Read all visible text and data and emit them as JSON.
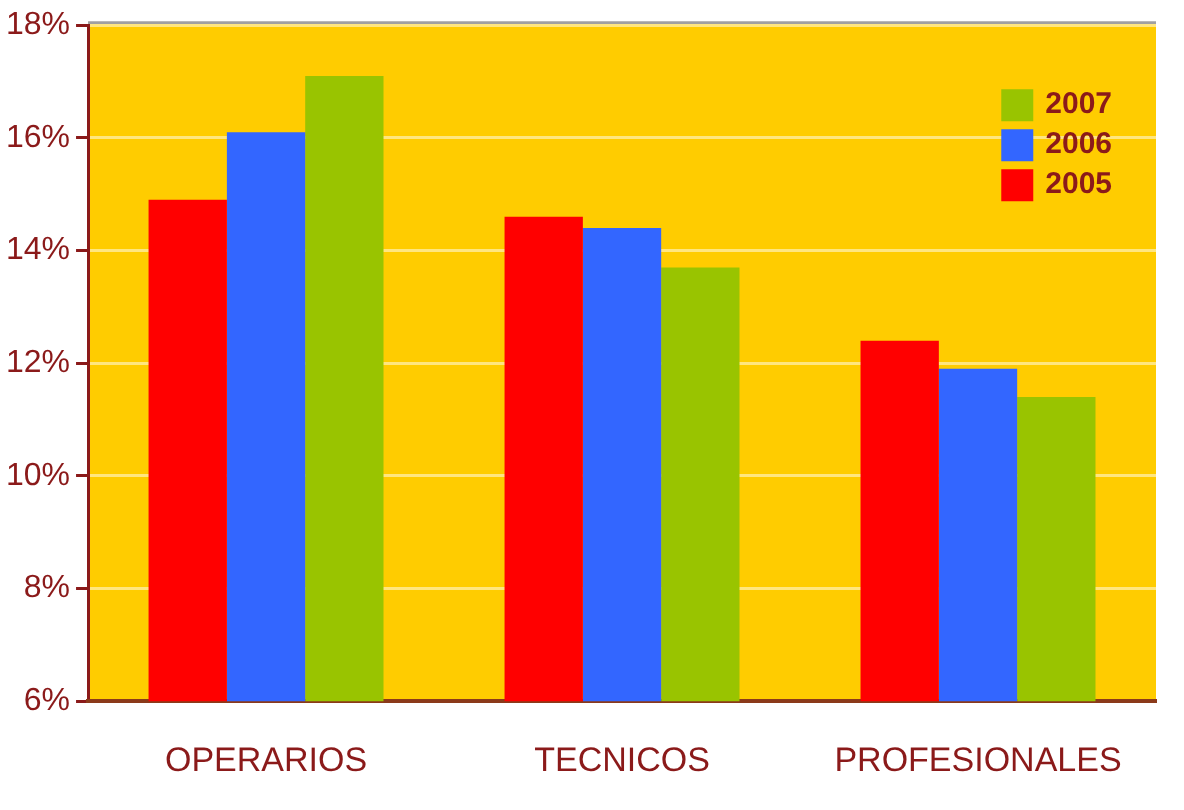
{
  "chart_data": {
    "type": "bar",
    "categories": [
      "OPERARIOS",
      "TECNICOS",
      "PROFESIONALES"
    ],
    "series": [
      {
        "name": "2005",
        "color": "#ff0000",
        "values": [
          14.9,
          14.6,
          12.4
        ]
      },
      {
        "name": "2006",
        "color": "#3366ff",
        "values": [
          16.1,
          14.4,
          11.9
        ]
      },
      {
        "name": "2007",
        "color": "#99c400",
        "values": [
          17.1,
          13.7,
          11.4
        ]
      }
    ],
    "ylim": [
      6,
      18
    ],
    "yticks": [
      {
        "value": 6,
        "label": "6%"
      },
      {
        "value": 8,
        "label": "8%"
      },
      {
        "value": 10,
        "label": "10%"
      },
      {
        "value": 12,
        "label": "12%"
      },
      {
        "value": 14,
        "label": "14%"
      },
      {
        "value": 16,
        "label": "16%"
      },
      {
        "value": 18,
        "label": "18%"
      }
    ],
    "grid": "y",
    "legend": "top right"
  }
}
